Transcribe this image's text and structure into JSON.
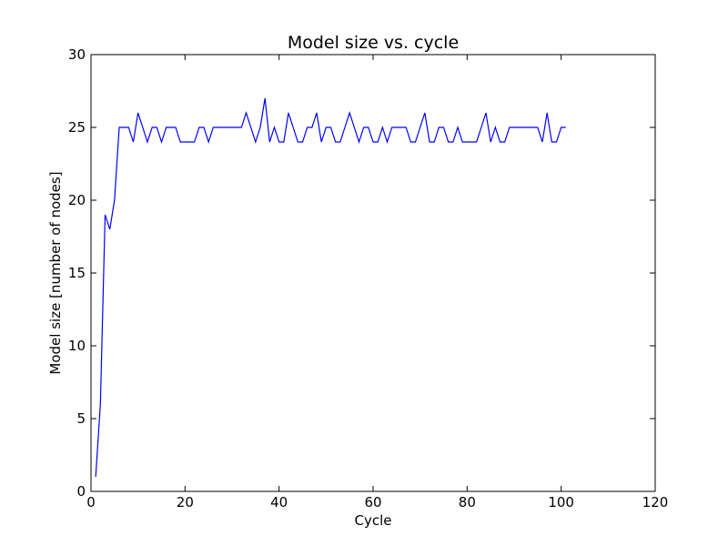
{
  "chart_data": {
    "type": "line",
    "title": "Model size vs. cycle",
    "xlabel": "Cycle",
    "ylabel": "Model size [number of nodes]",
    "xlim": [
      0,
      120
    ],
    "ylim": [
      0,
      30
    ],
    "xticks": [
      0,
      20,
      40,
      60,
      80,
      100,
      120
    ],
    "yticks": [
      0,
      5,
      10,
      15,
      20,
      25,
      30
    ],
    "grid": false,
    "colors": {
      "line": "#0000ff",
      "axes": "#000000",
      "background": "#ffffff"
    },
    "series": [
      {
        "x": [
          1,
          2,
          3,
          4,
          5,
          6,
          7,
          8,
          9,
          10,
          11,
          12,
          13,
          14,
          15,
          16,
          17,
          18,
          19,
          20,
          21,
          22,
          23,
          24,
          25,
          26,
          27,
          28,
          29,
          30,
          31,
          32,
          33,
          34,
          35,
          36,
          37,
          38,
          39,
          40,
          41,
          42,
          43,
          44,
          45,
          46,
          47,
          48,
          49,
          50,
          51,
          52,
          53,
          54,
          55,
          56,
          57,
          58,
          59,
          60,
          61,
          62,
          63,
          64,
          65,
          66,
          67,
          68,
          69,
          70,
          71,
          72,
          73,
          74,
          75,
          76,
          77,
          78,
          79,
          80,
          81,
          82,
          83,
          84,
          85,
          86,
          87,
          88,
          89,
          90,
          91,
          92,
          93,
          94,
          95,
          96,
          97,
          98,
          99,
          100,
          101
        ],
        "values": [
          1,
          6,
          19,
          18,
          20,
          25,
          25,
          25,
          24,
          26,
          25,
          24,
          25,
          25,
          24,
          25,
          25,
          25,
          24,
          24,
          24,
          24,
          25,
          25,
          24,
          25,
          25,
          25,
          25,
          25,
          25,
          25,
          26,
          25,
          24,
          25,
          27,
          24,
          25,
          24,
          24,
          26,
          25,
          24,
          24,
          25,
          25,
          26,
          24,
          25,
          25,
          24,
          24,
          25,
          26,
          25,
          24,
          25,
          25,
          24,
          24,
          25,
          24,
          25,
          25,
          25,
          25,
          24,
          24,
          25,
          26,
          24,
          24,
          25,
          25,
          24,
          24,
          25,
          24,
          24,
          24,
          24,
          25,
          26,
          24,
          25,
          24,
          24,
          25,
          25,
          25,
          25,
          25,
          25,
          25,
          24,
          26,
          24,
          24,
          25,
          25
        ]
      }
    ]
  }
}
